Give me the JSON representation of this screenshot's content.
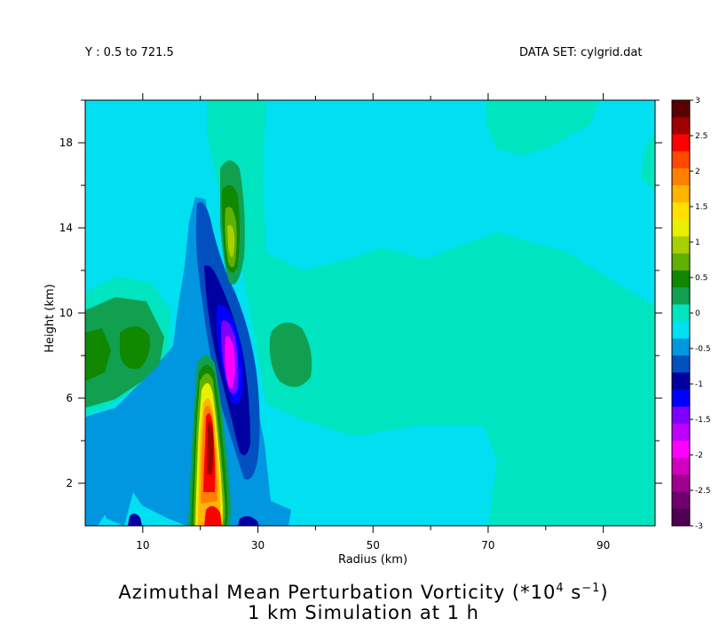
{
  "header": {
    "left": "Y : 0.5 to 721.5",
    "right": "DATA SET: cylgrid.dat"
  },
  "titles": {
    "line1_main": "Azimuthal Mean Perturbation Vorticity (*10",
    "line1_sup1": "4",
    "line1_mid": " s",
    "line1_sup2": "−1",
    "line1_end": ")",
    "line2": "1 km Simulation at 1 h"
  },
  "chart_data": {
    "type": "heatmap",
    "xlabel": "Radius (km)",
    "ylabel": "Height (km)",
    "xlim": [
      0,
      99
    ],
    "ylim": [
      0,
      20
    ],
    "xticks": [
      10,
      30,
      50,
      70,
      90
    ],
    "yticks": [
      2,
      6,
      10,
      14,
      18
    ],
    "colorbar": {
      "labels": [
        "3",
        "2.5",
        "2",
        "1.5",
        "1",
        "0.5",
        "0",
        "-0.5",
        "-1",
        "-1.5",
        "-2",
        "-2.5",
        "-3"
      ],
      "colors": [
        "#5a0000",
        "#a00000",
        "#ff0000",
        "#ff4800",
        "#ff8000",
        "#ffb400",
        "#ffe000",
        "#e8f000",
        "#a8d000",
        "#60b000",
        "#108800",
        "#10a050",
        "#00e4c0",
        "#00e0f0",
        "#0096e0",
        "#0050c0",
        "#0000a0",
        "#0000ff",
        "#8000ff",
        "#c000ff",
        "#ff00ff",
        "#d000c0",
        "#a00090",
        "#700070",
        "#500050"
      ]
    },
    "features": [
      {
        "name": "background",
        "value": 0.0
      },
      {
        "name": "upper-level positive region",
        "value": 0.2
      },
      {
        "name": "positive vorticity column near r=22 km",
        "max": 3.0
      },
      {
        "name": "negative vorticity column near r=25 km",
        "min": -2.0
      },
      {
        "name": "positive vorticity lobe near r=25 km, z=14 km",
        "max": 1.0
      },
      {
        "name": "left positive lobe near r=5 km, z=8 km",
        "max": 0.6
      },
      {
        "name": "positive lobe near r=37 km, z=8 km",
        "max": 0.5
      }
    ]
  }
}
